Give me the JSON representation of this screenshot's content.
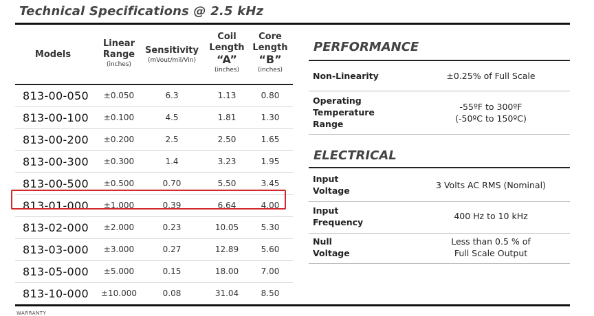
{
  "title": "Technical Specifications @ 2.5 kHz",
  "table": {
    "headers": {
      "models": "Models",
      "linear_range": "Linear Range",
      "linear_range_unit": "(inches)",
      "sensitivity": "Sensitivity",
      "sensitivity_unit": "(mVout/mil/Vin)",
      "coil_length": "Coil Length",
      "coil_symbol": "“A”",
      "coil_unit": "(inches)",
      "core_length": "Core Length",
      "core_symbol": "“B”",
      "core_unit": "(inches)"
    },
    "rows": [
      {
        "model": "813-00-050",
        "range": "±0.050",
        "sensitivity": "6.3",
        "coil": "1.13",
        "core": "0.80"
      },
      {
        "model": "813-00-100",
        "range": "±0.100",
        "sensitivity": "4.5",
        "coil": "1.81",
        "core": "1.30"
      },
      {
        "model": "813-00-200",
        "range": "±0.200",
        "sensitivity": "2.5",
        "coil": "2.50",
        "core": "1.65"
      },
      {
        "model": "813-00-300",
        "range": "±0.300",
        "sensitivity": "1.4",
        "coil": "3.23",
        "core": "1.95"
      },
      {
        "model": "813-00-500",
        "range": "±0.500",
        "sensitivity": "0.70",
        "coil": "5.50",
        "core": "3.45"
      },
      {
        "model": "813-01-000",
        "range": "±1.000",
        "sensitivity": "0.39",
        "coil": "6.64",
        "core": "4.00"
      },
      {
        "model": "813-02-000",
        "range": "±2.000",
        "sensitivity": "0.23",
        "coil": "10.05",
        "core": "5.30"
      },
      {
        "model": "813-03-000",
        "range": "±3.000",
        "sensitivity": "0.27",
        "coil": "12.89",
        "core": "5.60"
      },
      {
        "model": "813-05-000",
        "range": "±5.000",
        "sensitivity": "0.15",
        "coil": "18.00",
        "core": "7.00"
      },
      {
        "model": "813-10-000",
        "range": "±10.000",
        "sensitivity": "0.08",
        "coil": "31.04",
        "core": "8.50"
      }
    ],
    "highlight_color": "#d4282d"
  },
  "performance": {
    "title": "PERFORMANCE",
    "items": [
      {
        "label": "Non-Linearity",
        "value": "±0.25% of Full Scale"
      },
      {
        "label": "Operating Temperature Range",
        "value_line1": "-55ºF to 300ºF",
        "value_line2": "(-50ºC to 150ºC)"
      }
    ]
  },
  "electrical": {
    "title": "ELECTRICAL",
    "items": [
      {
        "label_line1": "Input",
        "label_line2": "Voltage",
        "value": "3 Volts AC RMS (Nominal)"
      },
      {
        "label_line1": "Input",
        "label_line2": "Frequency",
        "value": "400 Hz to 10 kHz"
      },
      {
        "label_line1": "Null",
        "label_line2": "Voltage",
        "value_line1": "Less than 0.5 % of",
        "value_line2": "Full Scale Output"
      }
    ]
  },
  "footer": {
    "warranty": "WARRANTY"
  }
}
